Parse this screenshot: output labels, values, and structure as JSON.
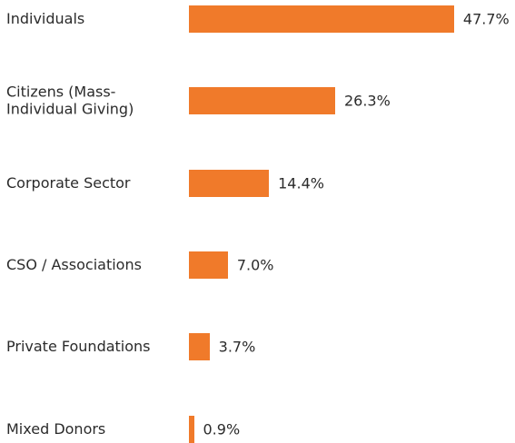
{
  "chart_data": {
    "type": "bar",
    "orientation": "horizontal",
    "categories": [
      "Individuals",
      "Citizens (Mass-Individual Giving)",
      "Corporate Sector",
      "CSO / Associations",
      "Private Foundations",
      "Mixed Donors"
    ],
    "values": [
      47.7,
      26.3,
      14.4,
      7.0,
      3.7,
      0.9
    ],
    "value_labels": [
      "47.7%",
      "26.3%",
      "14.4%",
      "7.0%",
      "3.7%",
      "0.9%"
    ],
    "color": "#f07a2a"
  }
}
